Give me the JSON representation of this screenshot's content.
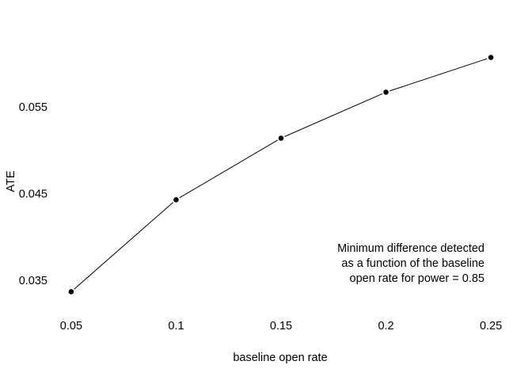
{
  "chart_data": {
    "type": "line",
    "title": "",
    "xlabel": "baseline open rate",
    "ylabel": "ATE",
    "x": [
      0.05,
      0.1,
      0.15,
      0.2,
      0.25
    ],
    "x_tick_labels": [
      "0.05",
      "0.1",
      "0.15",
      "0.2",
      "0.25"
    ],
    "y_ticks": [
      0.035,
      0.045,
      0.055
    ],
    "y_tick_labels": [
      "0.035",
      "0.045",
      "0.055"
    ],
    "xlim": [
      0.044,
      0.256
    ],
    "ylim": [
      0.0321,
      0.0613
    ],
    "series": [
      {
        "values": [
          0.0337,
          0.0443,
          0.0514,
          0.0567,
          0.0607
        ],
        "color": "#000000",
        "marker": "filled-circle"
      }
    ],
    "annotation": {
      "lines": [
        "Minimum difference detected",
        "as a function of the baseline",
        "open rate for power = 0.85"
      ],
      "align": "right"
    },
    "grid": false,
    "legend": "none"
  }
}
